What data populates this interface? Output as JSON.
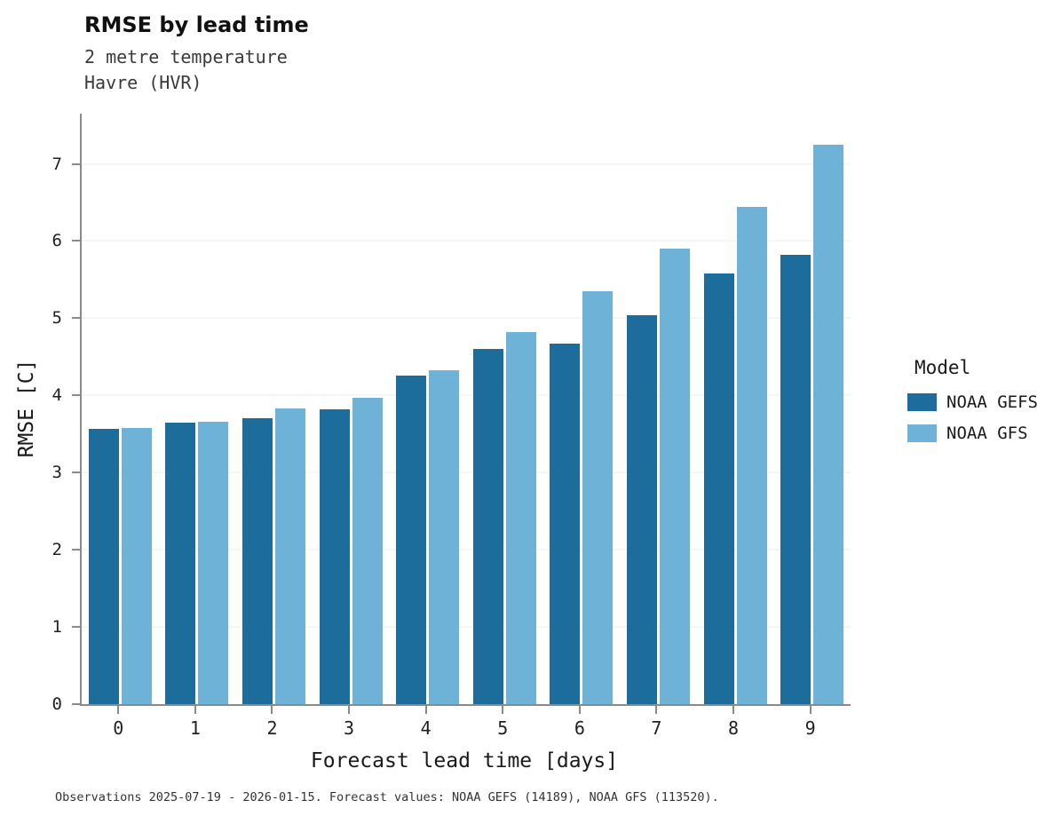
{
  "header": {
    "title": "RMSE by lead time",
    "subtitle1": "2 metre temperature",
    "subtitle2": "Havre (HVR)"
  },
  "legend": {
    "title": "Model"
  },
  "caption": "Observations 2025-07-19 - 2026-01-15. Forecast values: NOAA GEFS (14189), NOAA GFS (113520).",
  "colors": {
    "gefs": "#1c6d9c",
    "gfs": "#6fb2d8",
    "spine": "#8a8a8a",
    "gridline": "#ececec"
  },
  "chart_data": {
    "type": "bar",
    "title": "RMSE by lead time",
    "subtitle": [
      "2 metre temperature",
      "Havre (HVR)"
    ],
    "xlabel": "Forecast lead time [days]",
    "ylabel": "RMSE [C]",
    "categories": [
      "0",
      "1",
      "2",
      "3",
      "4",
      "5",
      "6",
      "7",
      "8",
      "9"
    ],
    "series": [
      {
        "name": "NOAA GEFS",
        "color": "#1c6d9c",
        "values": [
          3.57,
          3.65,
          3.71,
          3.82,
          4.26,
          4.6,
          4.67,
          5.04,
          5.58,
          5.82
        ]
      },
      {
        "name": "NOAA GFS",
        "color": "#6fb2d8",
        "values": [
          3.58,
          3.66,
          3.83,
          3.97,
          4.33,
          4.82,
          5.35,
          5.9,
          6.44,
          7.25
        ]
      }
    ],
    "ylim": [
      0,
      7.65
    ],
    "yticks": [
      0,
      1,
      2,
      3,
      4,
      5,
      6,
      7
    ],
    "grid": true,
    "legend_position": "right",
    "legend_title": "Model"
  }
}
